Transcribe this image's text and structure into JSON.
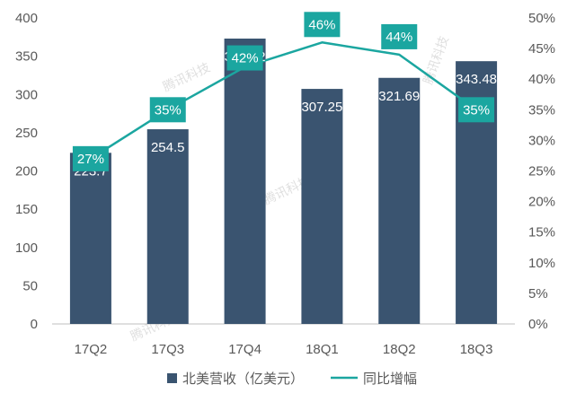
{
  "chart_data": {
    "type": "bar",
    "categories": [
      "17Q2",
      "17Q3",
      "17Q4",
      "18Q1",
      "18Q2",
      "18Q3"
    ],
    "series": [
      {
        "name": "北美营收（亿美元）",
        "type": "bar",
        "axis": "left",
        "color": "#3a5470",
        "values": [
          223.7,
          254.5,
          373.02,
          307.25,
          321.69,
          343.48
        ],
        "labels": [
          "223.7",
          "254.5",
          "373.02",
          "307.25",
          "321.69",
          "343.48"
        ]
      },
      {
        "name": "同比增幅",
        "type": "line",
        "axis": "right",
        "color": "#1ba6a0",
        "values": [
          27,
          35,
          42,
          46,
          44,
          35
        ],
        "labels": [
          "27%",
          "35%",
          "42%",
          "46%",
          "44%",
          "35%"
        ]
      }
    ],
    "y_left": {
      "range": [
        0,
        400
      ],
      "ticks": [
        "0",
        "50",
        "100",
        "150",
        "200",
        "250",
        "300",
        "350",
        "400"
      ]
    },
    "y_right": {
      "range": [
        0,
        50
      ],
      "ticks": [
        "0%",
        "5%",
        "10%",
        "15%",
        "20%",
        "25%",
        "30%",
        "35%",
        "40%",
        "45%",
        "50%"
      ]
    },
    "grid": false,
    "legend": "bottom",
    "watermark_text": "腾讯科技",
    "colors": {
      "axis": "#bfbfbf",
      "tick_text": "#595959",
      "label_on_bar": "#ffffff",
      "label_box_text": "#ffffff"
    }
  }
}
